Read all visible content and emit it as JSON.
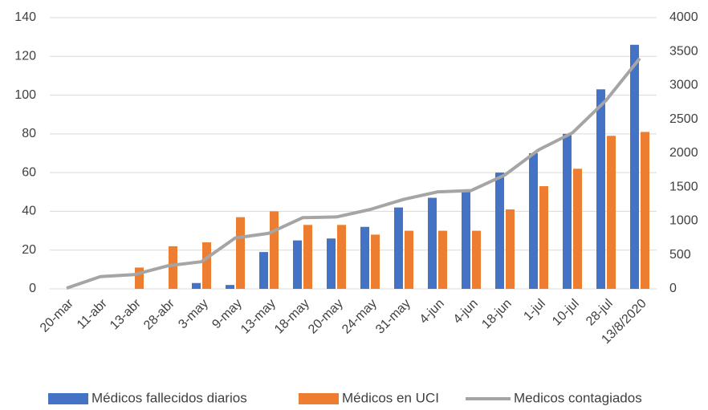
{
  "chart_data": {
    "type": "bar",
    "categories": [
      "20-mar",
      "11-abr",
      "13-abr",
      "28-abr",
      "3-may",
      "9-may",
      "13-may",
      "18-may",
      "20-may",
      "24-may",
      "31-may",
      "4-jun",
      "4-jun",
      "18-jun",
      "1-jul",
      "10-jul",
      "28-jul",
      "13/8/2020"
    ],
    "series": [
      {
        "name": "Médicos fallecidos diarios",
        "color": "#4472c4",
        "values": [
          0,
          0,
          0,
          0,
          3,
          2,
          19,
          25,
          26,
          32,
          42,
          47,
          50,
          60,
          70,
          80,
          103,
          126
        ]
      },
      {
        "name": "Médicos en UCI",
        "color": "#ed7d31",
        "values": [
          0,
          0,
          11,
          22,
          24,
          37,
          40,
          33,
          33,
          28,
          30,
          30,
          30,
          41,
          53,
          62,
          79,
          81
        ]
      },
      {
        "name": "Medicos contagiados",
        "color": "#a5a5a5",
        "type": "line",
        "axis": "y2",
        "values": [
          10,
          180,
          210,
          340,
          400,
          750,
          820,
          1050,
          1060,
          1170,
          1320,
          1430,
          1450,
          1680,
          2050,
          2300,
          2780,
          3400
        ]
      }
    ],
    "ylim": [
      0,
      140
    ],
    "yticks": [
      0,
      20,
      40,
      60,
      80,
      100,
      120,
      140
    ],
    "y2lim": [
      0,
      4000
    ],
    "y2ticks": [
      0,
      500,
      1000,
      1500,
      2000,
      2500,
      3000,
      3500,
      4000
    ],
    "grid": true,
    "legend": "bottom"
  }
}
